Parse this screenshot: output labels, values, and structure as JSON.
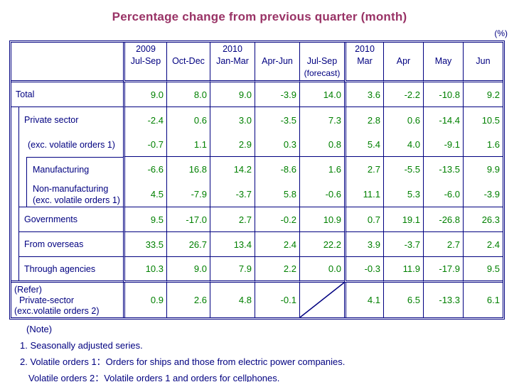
{
  "title": "Percentage change from previous quarter (month)",
  "unit_label": "(%)",
  "colors": {
    "title": "#993366",
    "border_and_text": "#000080",
    "values": "#008000"
  },
  "table": {
    "col_groups": [
      {
        "year": "2009",
        "label": "Jul-Sep",
        "sub": ""
      },
      {
        "year": "",
        "label": "Oct-Dec",
        "sub": ""
      },
      {
        "year": "2010",
        "label": "Jan-Mar",
        "sub": ""
      },
      {
        "year": "",
        "label": "Apr-Jun",
        "sub": ""
      },
      {
        "year": "",
        "label": "Jul-Sep",
        "sub": "(forecast)"
      },
      {
        "year": "2010",
        "label": "Mar",
        "sub": ""
      },
      {
        "year": "",
        "label": "Apr",
        "sub": ""
      },
      {
        "year": "",
        "label": "May",
        "sub": ""
      },
      {
        "year": "",
        "label": "Jun",
        "sub": ""
      }
    ],
    "rows": [
      {
        "label_lines": [
          "Total"
        ],
        "values": [
          "9.0",
          "8.0",
          "9.0",
          "-3.9",
          "14.0",
          "3.6",
          "-2.2",
          "-10.8",
          "9.2"
        ]
      },
      {
        "label_lines": [
          "Private sector"
        ],
        "values": [
          "-2.4",
          "0.6",
          "3.0",
          "-3.5",
          "7.3",
          "2.8",
          "0.6",
          "-14.4",
          "10.5"
        ]
      },
      {
        "label_lines": [
          "(exc. volatile orders 1)"
        ],
        "values": [
          "-0.7",
          "1.1",
          "2.9",
          "0.3",
          "0.8",
          "5.4",
          "4.0",
          "-9.1",
          "1.6"
        ]
      },
      {
        "label_lines": [
          "Manufacturing"
        ],
        "values": [
          "-6.6",
          "16.8",
          "14.2",
          "-8.6",
          "1.6",
          "2.7",
          "-5.5",
          "-13.5",
          "9.9"
        ]
      },
      {
        "label_lines": [
          "Non-manufacturing",
          "(exc. volatile orders 1)"
        ],
        "values": [
          "4.5",
          "-7.9",
          "-3.7",
          "5.8",
          "-0.6",
          "11.1",
          "5.3",
          "-6.0",
          "-3.9"
        ]
      },
      {
        "label_lines": [
          "Governments"
        ],
        "values": [
          "9.5",
          "-17.0",
          "2.7",
          "-0.2",
          "10.9",
          "0.7",
          "19.1",
          "-26.8",
          "26.3"
        ]
      },
      {
        "label_lines": [
          "From overseas"
        ],
        "values": [
          "33.5",
          "26.7",
          "13.4",
          "2.4",
          "22.2",
          "3.9",
          "-3.7",
          "2.7",
          "2.4"
        ]
      },
      {
        "label_lines": [
          "Through agencies"
        ],
        "values": [
          "10.3",
          "9.0",
          "7.9",
          "2.2",
          "0.0",
          "-0.3",
          "11.9",
          "-17.9",
          "9.5"
        ]
      },
      {
        "label_lines": [
          "(Refer)",
          "  Private-sector",
          "(exc.volatile orders 2)"
        ],
        "values": [
          "0.9",
          "2.6",
          "4.8",
          "-0.1",
          null,
          "4.1",
          "6.5",
          "-13.3",
          "6.1"
        ]
      }
    ]
  },
  "notes": {
    "heading": "(Note)",
    "lines": [
      "1. Seasonally adjusted series.",
      "2. Volatile orders 1：Orders for ships and those from electric power companies.",
      "Volatile orders 2：Volatile orders 1 and orders for cellphones."
    ]
  }
}
